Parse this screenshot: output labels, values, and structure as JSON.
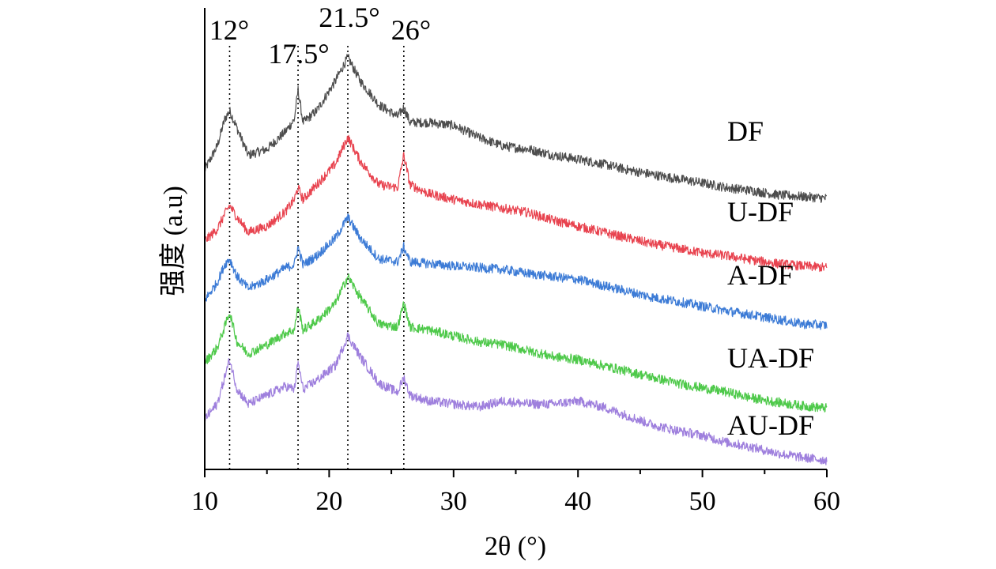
{
  "chart_data": {
    "type": "line",
    "xlabel": "2θ (°)",
    "ylabel": "强度 (a.u)",
    "xlim": [
      10,
      60
    ],
    "x_ticks": [
      10,
      20,
      30,
      40,
      50,
      60
    ],
    "y_ticks_shown": false,
    "grid": false,
    "reference_lines": [
      {
        "x": 12,
        "label": "12°"
      },
      {
        "x": 17.5,
        "label": "17.5°"
      },
      {
        "x": 21.5,
        "label": "21.5°"
      },
      {
        "x": 26,
        "label": "26°"
      }
    ],
    "x": [
      10,
      11,
      11.6,
      12,
      12.6,
      13.5,
      15,
      16.5,
      17.2,
      17.5,
      17.9,
      19,
      20.5,
      21.5,
      22.5,
      24,
      25.5,
      26,
      26.5,
      28,
      30,
      32,
      34,
      36,
      38,
      40,
      42,
      44,
      46,
      48,
      50,
      52,
      54,
      56,
      58,
      60
    ],
    "series": [
      {
        "name": "DF",
        "color": "#4d4d4d",
        "values": [
          5.2,
          5.6,
          6.05,
          6.2,
          5.9,
          5.45,
          5.55,
          5.85,
          6.05,
          6.55,
          6.0,
          6.2,
          6.7,
          7.1,
          6.7,
          6.3,
          6.1,
          6.25,
          6.0,
          6.0,
          5.95,
          5.75,
          5.6,
          5.55,
          5.45,
          5.38,
          5.3,
          5.2,
          5.12,
          5.05,
          4.98,
          4.9,
          4.85,
          4.78,
          4.75,
          4.72
        ]
      },
      {
        "name": "U-DF",
        "color": "#e8434f",
        "values": [
          4.0,
          4.2,
          4.45,
          4.6,
          4.4,
          4.15,
          4.25,
          4.5,
          4.7,
          4.9,
          4.7,
          4.95,
          5.3,
          5.75,
          5.35,
          4.95,
          4.9,
          5.45,
          4.95,
          4.8,
          4.7,
          4.62,
          4.55,
          4.48,
          4.35,
          4.25,
          4.15,
          4.05,
          3.95,
          3.88,
          3.8,
          3.75,
          3.68,
          3.62,
          3.58,
          3.55
        ]
      },
      {
        "name": "A-DF",
        "color": "#3c7bd6",
        "values": [
          3.0,
          3.3,
          3.6,
          3.7,
          3.4,
          3.2,
          3.35,
          3.55,
          3.6,
          3.9,
          3.6,
          3.75,
          4.05,
          4.4,
          4.05,
          3.7,
          3.65,
          3.9,
          3.65,
          3.62,
          3.58,
          3.55,
          3.52,
          3.45,
          3.4,
          3.35,
          3.25,
          3.15,
          3.05,
          2.98,
          2.9,
          2.82,
          2.75,
          2.68,
          2.6,
          2.58
        ]
      },
      {
        "name": "UA-DF",
        "color": "#4ec94a",
        "values": [
          1.95,
          2.2,
          2.55,
          2.8,
          2.3,
          2.1,
          2.25,
          2.45,
          2.5,
          2.9,
          2.5,
          2.65,
          2.95,
          3.4,
          3.05,
          2.6,
          2.55,
          2.95,
          2.55,
          2.5,
          2.4,
          2.3,
          2.25,
          2.15,
          2.05,
          2.0,
          1.9,
          1.8,
          1.7,
          1.6,
          1.52,
          1.45,
          1.35,
          1.28,
          1.22,
          1.18
        ]
      },
      {
        "name": "AU-DF",
        "color": "#9e7fdd",
        "values": [
          1.0,
          1.25,
          1.7,
          2.0,
          1.5,
          1.25,
          1.4,
          1.55,
          1.5,
          1.95,
          1.5,
          1.65,
          1.9,
          2.4,
          2.05,
          1.6,
          1.45,
          1.7,
          1.4,
          1.3,
          1.25,
          1.2,
          1.3,
          1.25,
          1.25,
          1.3,
          1.2,
          1.05,
          0.9,
          0.8,
          0.72,
          0.6,
          0.52,
          0.42,
          0.35,
          0.3
        ]
      }
    ]
  }
}
